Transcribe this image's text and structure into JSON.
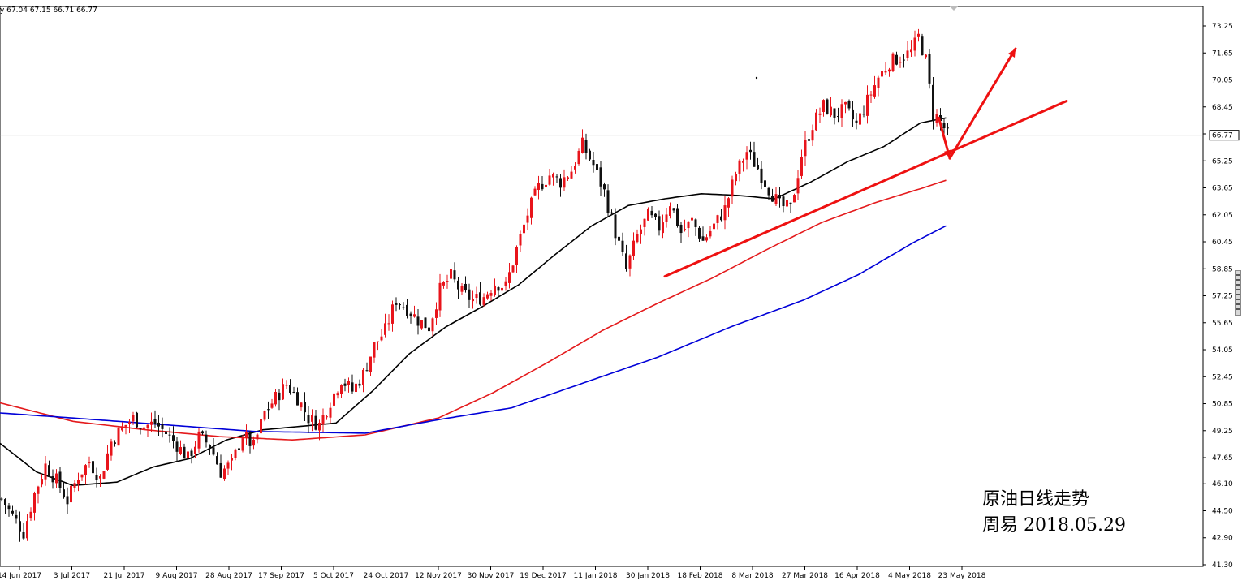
{
  "header": {
    "ohlc_text": "y 67.04 67.15 66.71 66.77"
  },
  "annotation": {
    "line1": "原油日线走势",
    "line2": "周易 2018.05.29"
  },
  "price_label": "66.77",
  "colors": {
    "bull": "#e8141b",
    "bear": "#111111",
    "ma_short": "#000000",
    "ma_mid": "#e41a1c",
    "ma_long": "#0000d8",
    "trendline": "#ee1111",
    "price_line": "#b8b8b8"
  },
  "chart_data": {
    "type": "candlestick",
    "title": "",
    "x_ticks": [
      "14 Jun 2017",
      "3 Jul 2017",
      "21 Jul 2017",
      "9 Aug 2017",
      "28 Aug 2017",
      "17 Sep 2017",
      "5 Oct 2017",
      "24 Oct 2017",
      "12 Nov 2017",
      "30 Nov 2017",
      "19 Dec 2017",
      "11 Jan 2018",
      "30 Jan 2018",
      "18 Feb 2018",
      "8 Mar 2018",
      "27 Mar 2018",
      "16 Apr 2018",
      "4 May 2018",
      "23 May 2018"
    ],
    "y_ticks": [
      "73.25",
      "71.65",
      "70.05",
      "68.45",
      "66.85",
      "65.25",
      "63.65",
      "62.05",
      "60.45",
      "58.85",
      "57.25",
      "55.65",
      "54.05",
      "52.45",
      "50.85",
      "49.25",
      "47.65",
      "46.10",
      "44.50",
      "42.90",
      "41.30"
    ],
    "ylim": [
      41.3,
      73.25
    ],
    "last_price": 66.77,
    "price_path": [
      [
        0,
        45.2
      ],
      [
        3,
        44.2
      ],
      [
        6,
        43.2
      ],
      [
        9,
        45.5
      ],
      [
        12,
        47.2
      ],
      [
        15,
        46.3
      ],
      [
        18,
        45.1
      ],
      [
        21,
        46.6
      ],
      [
        24,
        47.4
      ],
      [
        27,
        46.4
      ],
      [
        30,
        48.6
      ],
      [
        33,
        49.4
      ],
      [
        36,
        50.0
      ],
      [
        39,
        49.5
      ],
      [
        42,
        49.7
      ],
      [
        45,
        49.1
      ],
      [
        48,
        48.4
      ],
      [
        51,
        47.6
      ],
      [
        54,
        48.9
      ],
      [
        57,
        48.4
      ],
      [
        60,
        46.8
      ],
      [
        63,
        47.3
      ],
      [
        66,
        49.0
      ],
      [
        69,
        48.3
      ],
      [
        72,
        50.3
      ],
      [
        75,
        51.2
      ],
      [
        78,
        52.0
      ],
      [
        81,
        51.2
      ],
      [
        84,
        50.0
      ],
      [
        87,
        49.6
      ],
      [
        90,
        51.0
      ],
      [
        93,
        52.3
      ],
      [
        96,
        51.6
      ],
      [
        99,
        52.6
      ],
      [
        102,
        54.3
      ],
      [
        105,
        55.2
      ],
      [
        108,
        57.0
      ],
      [
        111,
        56.5
      ],
      [
        114,
        55.8
      ],
      [
        117,
        55.4
      ],
      [
        120,
        57.6
      ],
      [
        123,
        58.4
      ],
      [
        126,
        57.4
      ],
      [
        129,
        57.0
      ],
      [
        132,
        57.2
      ],
      [
        135,
        58.0
      ],
      [
        138,
        57.8
      ],
      [
        141,
        60.0
      ],
      [
        144,
        62.1
      ],
      [
        147,
        63.7
      ],
      [
        150,
        64.4
      ],
      [
        153,
        64.0
      ],
      [
        156,
        64.7
      ],
      [
        159,
        66.2
      ],
      [
        162,
        65.0
      ],
      [
        165,
        63.4
      ],
      [
        168,
        61.0
      ],
      [
        171,
        58.8
      ],
      [
        174,
        60.8
      ],
      [
        177,
        62.0
      ],
      [
        180,
        61.3
      ],
      [
        183,
        62.8
      ],
      [
        186,
        61.0
      ],
      [
        189,
        61.7
      ],
      [
        192,
        60.5
      ],
      [
        195,
        61.4
      ],
      [
        198,
        62.4
      ],
      [
        201,
        64.5
      ],
      [
        204,
        65.8
      ],
      [
        207,
        64.8
      ],
      [
        210,
        63.6
      ],
      [
        213,
        62.6
      ],
      [
        216,
        62.4
      ],
      [
        219,
        65.6
      ],
      [
        222,
        67.4
      ],
      [
        225,
        68.5
      ],
      [
        228,
        68.0
      ],
      [
        231,
        68.3
      ],
      [
        234,
        67.4
      ],
      [
        237,
        68.8
      ],
      [
        240,
        70.2
      ],
      [
        243,
        71.1
      ],
      [
        246,
        71.4
      ],
      [
        249,
        71.7
      ],
      [
        251,
        72.6
      ],
      [
        253,
        71.2
      ],
      [
        255,
        68.0
      ],
      [
        256,
        67.9
      ],
      [
        258,
        67.2
      ],
      [
        259,
        66.77
      ]
    ],
    "series": [
      {
        "name": "",
        "type": "ma",
        "values": [
          [
            0,
            48.5
          ],
          [
            10,
            46.8
          ],
          [
            20,
            46.0
          ],
          [
            32,
            46.2
          ],
          [
            42,
            47.1
          ],
          [
            52,
            47.6
          ],
          [
            62,
            48.7
          ],
          [
            72,
            49.3
          ],
          [
            82,
            49.5
          ],
          [
            92,
            49.7
          ],
          [
            102,
            51.6
          ],
          [
            112,
            53.8
          ],
          [
            122,
            55.4
          ],
          [
            132,
            56.6
          ],
          [
            142,
            57.9
          ],
          [
            152,
            59.7
          ],
          [
            162,
            61.4
          ],
          [
            172,
            62.6
          ],
          [
            182,
            63.0
          ],
          [
            192,
            63.3
          ],
          [
            202,
            63.2
          ],
          [
            212,
            63.0
          ],
          [
            222,
            64.0
          ],
          [
            232,
            65.2
          ],
          [
            242,
            66.1
          ],
          [
            252,
            67.5
          ],
          [
            259,
            67.8
          ]
        ]
      },
      {
        "name": "",
        "type": "ma",
        "values": [
          [
            0,
            50.9
          ],
          [
            20,
            49.8
          ],
          [
            40,
            49.3
          ],
          [
            60,
            48.9
          ],
          [
            80,
            48.7
          ],
          [
            100,
            49.0
          ],
          [
            120,
            50.0
          ],
          [
            135,
            51.5
          ],
          [
            150,
            53.3
          ],
          [
            165,
            55.2
          ],
          [
            180,
            56.8
          ],
          [
            195,
            58.3
          ],
          [
            210,
            60.0
          ],
          [
            225,
            61.6
          ],
          [
            240,
            62.8
          ],
          [
            252,
            63.6
          ],
          [
            259,
            64.1
          ]
        ]
      },
      {
        "name": "",
        "type": "ma",
        "values": [
          [
            0,
            50.3
          ],
          [
            20,
            50.0
          ],
          [
            45,
            49.6
          ],
          [
            70,
            49.2
          ],
          [
            100,
            49.1
          ],
          [
            120,
            49.9
          ],
          [
            140,
            50.6
          ],
          [
            160,
            52.1
          ],
          [
            180,
            53.6
          ],
          [
            200,
            55.4
          ],
          [
            220,
            57.0
          ],
          [
            235,
            58.5
          ],
          [
            250,
            60.4
          ],
          [
            259,
            61.4
          ]
        ]
      }
    ],
    "trendlines": [
      {
        "from": [
          182,
          58.4
        ],
        "to": [
          292,
          68.8
        ]
      },
      {
        "from": [
          257,
          67.8
        ],
        "to": [
          260,
          65.4
        ]
      },
      {
        "from": [
          260,
          65.4
        ],
        "to": [
          278,
          71.9
        ]
      }
    ]
  }
}
